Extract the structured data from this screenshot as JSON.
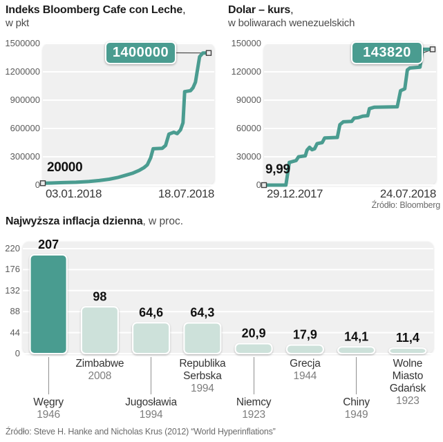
{
  "colors": {
    "teal": "#4a9c90",
    "light_bar": "#cde1da",
    "plot_bg": "#f0f0f0",
    "grid": "#ffffff",
    "badge_text": "#ffffff",
    "tick_text": "#5a5a5a",
    "date_text": "#383838",
    "value_text": "#111111",
    "country_text": "#333333",
    "year_text": "#7d7d7d",
    "source_text": "#6b6b6b",
    "marker_fill": "#ececec",
    "marker_stroke": "#3f3f3f",
    "connector": "#4c4c4c"
  },
  "chart_data": [
    {
      "type": "line",
      "title": "Indeks Bloomberg Cafe con Leche",
      "title_separator": ",",
      "unit": "w pkt",
      "x_start": "03.01.2018",
      "x_end": "18.07.2018",
      "start_label": "20000",
      "start_value": 20000,
      "end_label": "1400000",
      "end_value": 1400000,
      "ylim": [
        0,
        1500000
      ],
      "yticks": [
        0,
        300000,
        600000,
        900000,
        1200000,
        1500000
      ],
      "grid": true,
      "points": [
        [
          0,
          20000
        ],
        [
          0.05,
          22000
        ],
        [
          0.12,
          26000
        ],
        [
          0.2,
          30000
        ],
        [
          0.28,
          38000
        ],
        [
          0.34,
          48000
        ],
        [
          0.4,
          62000
        ],
        [
          0.45,
          80000
        ],
        [
          0.5,
          105000
        ],
        [
          0.54,
          125000
        ],
        [
          0.58,
          155000
        ],
        [
          0.61,
          185000
        ],
        [
          0.63,
          215000
        ],
        [
          0.65,
          290000
        ],
        [
          0.665,
          385000
        ],
        [
          0.72,
          390000
        ],
        [
          0.74,
          420000
        ],
        [
          0.76,
          540000
        ],
        [
          0.79,
          560000
        ],
        [
          0.81,
          545000
        ],
        [
          0.83,
          585000
        ],
        [
          0.845,
          660000
        ],
        [
          0.855,
          990000
        ],
        [
          0.89,
          1000000
        ],
        [
          0.905,
          1030000
        ],
        [
          0.92,
          1090000
        ],
        [
          0.945,
          1360000
        ],
        [
          0.965,
          1400000
        ],
        [
          1,
          1400000
        ]
      ]
    },
    {
      "type": "line",
      "title": "Dolar – kurs",
      "title_separator": ",",
      "unit": "w boliwarach wenezuelskich",
      "x_start": "29.12.2017",
      "x_end": "24.07.2018",
      "start_label": "9,99",
      "start_value": 9.99,
      "end_label": "143820",
      "end_value": 143820,
      "source": "Źródło: Bloomberg",
      "ylim": [
        0,
        150000
      ],
      "yticks": [
        0,
        30000,
        60000,
        90000,
        120000,
        150000
      ],
      "grid": true,
      "points": [
        [
          0,
          10
        ],
        [
          0.13,
          10
        ],
        [
          0.15,
          24000
        ],
        [
          0.19,
          26000
        ],
        [
          0.205,
          30000
        ],
        [
          0.245,
          31000
        ],
        [
          0.255,
          37000
        ],
        [
          0.27,
          40000
        ],
        [
          0.285,
          37500
        ],
        [
          0.3,
          38500
        ],
        [
          0.315,
          44000
        ],
        [
          0.345,
          45000
        ],
        [
          0.36,
          50000
        ],
        [
          0.435,
          50500
        ],
        [
          0.45,
          64000
        ],
        [
          0.47,
          67000
        ],
        [
          0.52,
          67500
        ],
        [
          0.535,
          71000
        ],
        [
          0.56,
          71500
        ],
        [
          0.585,
          73000
        ],
        [
          0.615,
          73500
        ],
        [
          0.625,
          81000
        ],
        [
          0.655,
          82500
        ],
        [
          0.79,
          83000
        ],
        [
          0.81,
          100000
        ],
        [
          0.835,
          102000
        ],
        [
          0.85,
          122000
        ],
        [
          0.865,
          124000
        ],
        [
          0.925,
          125000
        ],
        [
          0.94,
          143820
        ],
        [
          1,
          143820
        ]
      ]
    },
    {
      "type": "bar",
      "title": "Najwyższa inflacja dzienna",
      "unit_inline": ", w proc.",
      "ylim": [
        0,
        220
      ],
      "yticks": [
        0,
        44,
        88,
        132,
        176,
        220
      ],
      "grid": true,
      "source": "Źródło: Steve H. Hanke and Nicholas Krus (2012) “World Hyperinflations”",
      "categories": [
        {
          "country": "Węgry",
          "year": "1946",
          "value": 207,
          "label": "207",
          "highlight": true,
          "row": "lower",
          "name_lines": [
            "Węgry"
          ]
        },
        {
          "country": "Zimbabwe",
          "year": "2008",
          "value": 98,
          "label": "98",
          "highlight": false,
          "row": "upper",
          "name_lines": [
            "Zimbabwe"
          ]
        },
        {
          "country": "Jugosławia",
          "year": "1994",
          "value": 64.6,
          "label": "64,6",
          "highlight": false,
          "row": "lower",
          "name_lines": [
            "Jugosławia"
          ]
        },
        {
          "country": "Republika Serbska",
          "year": "1994",
          "value": 64.3,
          "label": "64,3",
          "highlight": false,
          "row": "upper",
          "name_lines": [
            "Republika",
            "Serbska"
          ]
        },
        {
          "country": "Niemcy",
          "year": "1923",
          "value": 20.9,
          "label": "20,9",
          "highlight": false,
          "row": "lower",
          "name_lines": [
            "Niemcy"
          ]
        },
        {
          "country": "Grecja",
          "year": "1944",
          "value": 17.9,
          "label": "17,9",
          "highlight": false,
          "row": "upper",
          "name_lines": [
            "Grecja"
          ]
        },
        {
          "country": "Chiny",
          "year": "1949",
          "value": 14.1,
          "label": "14,1",
          "highlight": false,
          "row": "lower",
          "name_lines": [
            "Chiny"
          ]
        },
        {
          "country": "Wolne Miasto Gdańsk",
          "year": "1923",
          "value": 11.4,
          "label": "11,4",
          "highlight": false,
          "row": "upper",
          "name_lines": [
            "Wolne",
            "Miasto",
            "Gdańsk"
          ]
        }
      ]
    }
  ]
}
